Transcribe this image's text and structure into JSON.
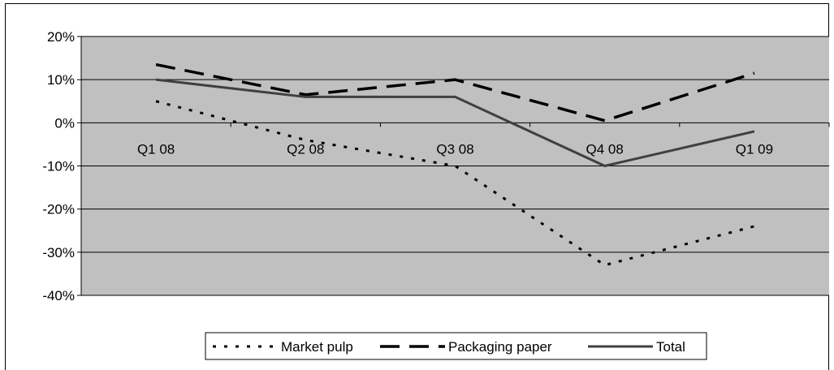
{
  "chart_data": {
    "type": "line",
    "categories": [
      "Q1 08",
      "Q2 08",
      "Q3 08",
      "Q4 08",
      "Q1 09"
    ],
    "series": [
      {
        "name": "Market pulp",
        "values": [
          5,
          -4,
          -10,
          -33,
          -24
        ],
        "style": "dotted"
      },
      {
        "name": "Packaging paper",
        "values": [
          13.5,
          6.5,
          10,
          0.5,
          11.5
        ],
        "style": "dashed"
      },
      {
        "name": "Total",
        "values": [
          10,
          6,
          6,
          -10,
          -2
        ],
        "style": "solid"
      }
    ],
    "ylim": [
      -40,
      20
    ],
    "yticks": [
      20,
      10,
      0,
      -10,
      -20,
      -30,
      -40
    ],
    "ytick_labels": [
      "20%",
      "10%",
      "0%",
      "-10%",
      "-20%",
      "-30%",
      "-40%"
    ],
    "grid": true,
    "legend_position": "bottom",
    "colors": {
      "plot_background": "#c0c0c0",
      "market_pulp": "#000000",
      "packaging_paper": "#000000",
      "total": "#404040"
    }
  }
}
